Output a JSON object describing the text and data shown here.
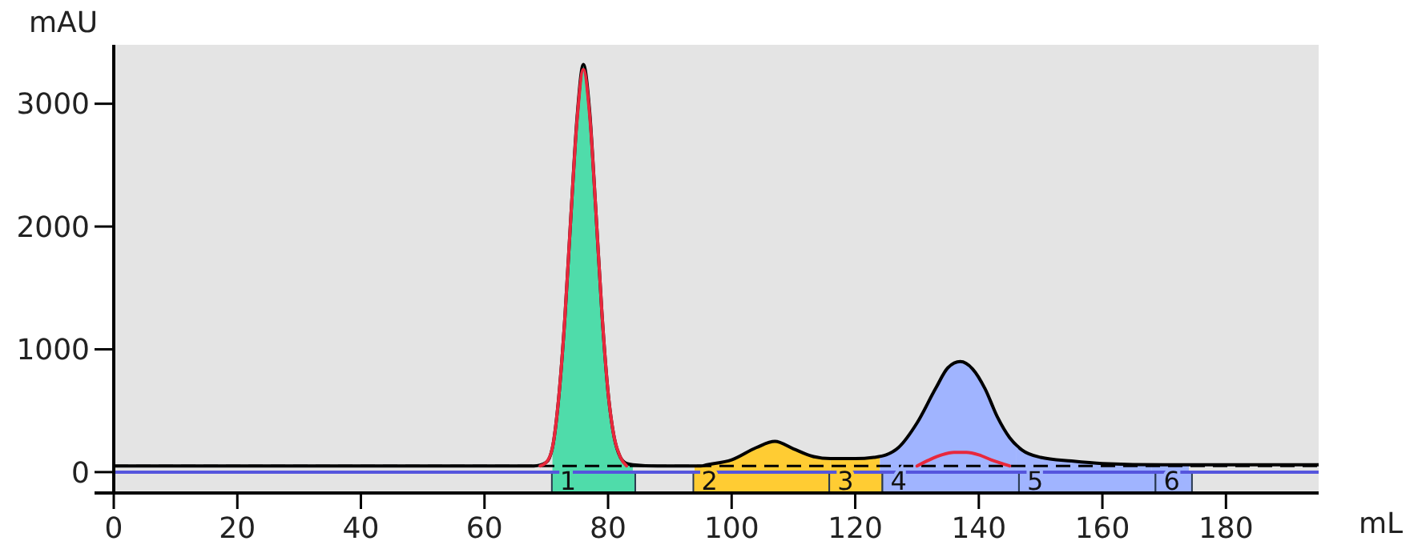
{
  "chart_data": {
    "type": "line",
    "xlabel": "mL",
    "ylabel": "mAU",
    "xlim": [
      0,
      195
    ],
    "ylim": [
      -170,
      3480
    ],
    "xticks": [
      0,
      20,
      40,
      60,
      80,
      100,
      120,
      140,
      160,
      180
    ],
    "yticks": [
      0,
      1000,
      2000,
      3000
    ],
    "grid": false,
    "marker": "none",
    "line_style": "solid",
    "series": [
      {
        "type": "area",
        "color": "#4fdcaa",
        "x": [
          71,
          72,
          73,
          74,
          75,
          76,
          77,
          78,
          79,
          80,
          81,
          82,
          83,
          84
        ],
        "values": [
          200,
          600,
          1250,
          2100,
          2900,
          3320,
          2950,
          2150,
          1300,
          650,
          280,
          120,
          70,
          60
        ]
      },
      {
        "type": "area",
        "color": "#ffcc33",
        "x": [
          94,
          96,
          100,
          104,
          107,
          110,
          113,
          116
        ],
        "values": [
          50,
          60,
          100,
          200,
          250,
          190,
          130,
          110
        ]
      },
      {
        "type": "area",
        "color": "#ffcc33",
        "x": [
          116,
          120,
          123,
          124
        ],
        "values": [
          110,
          110,
          120,
          130
        ]
      },
      {
        "type": "area",
        "color": "#a0b4ff",
        "x": [
          124,
          125,
          127,
          130,
          133,
          135,
          137,
          139,
          141,
          143,
          145,
          146
        ],
        "values": [
          130,
          140,
          200,
          400,
          680,
          850,
          900,
          840,
          680,
          450,
          280,
          230
        ]
      },
      {
        "type": "area",
        "color": "#a0b4ff",
        "x": [
          146,
          147,
          150,
          155,
          160,
          168
        ],
        "values": [
          230,
          180,
          120,
          90,
          70,
          60
        ]
      },
      {
        "type": "area",
        "color": "#a0b4ff",
        "x": [
          168,
          170,
          174
        ],
        "values": [
          60,
          60,
          60
        ]
      },
      {
        "color": "#5555dd",
        "x": [
          0,
          195
        ],
        "values": [
          0,
          0
        ]
      },
      {
        "color": "#000000",
        "x": [
          0,
          68,
          70,
          71,
          72,
          73,
          74,
          75,
          76,
          77,
          78,
          79,
          80,
          81,
          82,
          83,
          84,
          88,
          95,
          96,
          100,
          104,
          107,
          110,
          113,
          116,
          120,
          123,
          125,
          127,
          130,
          133,
          135,
          137,
          139,
          141,
          143,
          145,
          147,
          150,
          155,
          160,
          170,
          180,
          195
        ],
        "values": [
          50,
          50,
          80,
          200,
          600,
          1250,
          2100,
          2900,
          3320,
          2950,
          2150,
          1300,
          650,
          280,
          120,
          70,
          60,
          50,
          50,
          60,
          100,
          200,
          250,
          190,
          130,
          110,
          110,
          120,
          140,
          200,
          400,
          680,
          850,
          900,
          840,
          680,
          450,
          280,
          180,
          120,
          90,
          70,
          60,
          60,
          60
        ]
      },
      {
        "color": "#e8283c",
        "x": [
          69,
          70,
          71,
          72,
          73,
          74,
          75,
          76,
          77,
          78,
          79,
          80,
          81,
          82,
          83
        ],
        "values": [
          50,
          80,
          200,
          600,
          1250,
          2100,
          2880,
          3280,
          2920,
          2150,
          1300,
          650,
          280,
          120,
          50
        ]
      },
      {
        "color": "#e8283c",
        "x": [
          130,
          132,
          134,
          136,
          137,
          138,
          140,
          142,
          145
        ],
        "values": [
          50,
          100,
          140,
          160,
          160,
          160,
          140,
          100,
          50
        ]
      }
    ],
    "ref_lines": [
      {
        "axis": "y",
        "value": 50,
        "line_style": "dashed",
        "color": "#000000"
      }
    ],
    "bands": [
      {
        "axis": "x",
        "from": 70.9,
        "to": 84.4,
        "label": "1",
        "color": "#4fdcaa"
      },
      {
        "axis": "x",
        "from": 93.8,
        "to": 115.8,
        "label": "2",
        "color": "#ffcc33"
      },
      {
        "axis": "x",
        "from": 115.8,
        "to": 124.4,
        "label": "3",
        "color": "#ffcc33"
      },
      {
        "axis": "x",
        "from": 124.4,
        "to": 146.5,
        "label": "4",
        "color": "#a0b4ff"
      },
      {
        "axis": "x",
        "from": 146.5,
        "to": 168.6,
        "label": "5",
        "color": "#a0b4ff"
      },
      {
        "axis": "x",
        "from": 168.6,
        "to": 174.5,
        "label": "6",
        "color": "#a0b4ff"
      }
    ]
  }
}
